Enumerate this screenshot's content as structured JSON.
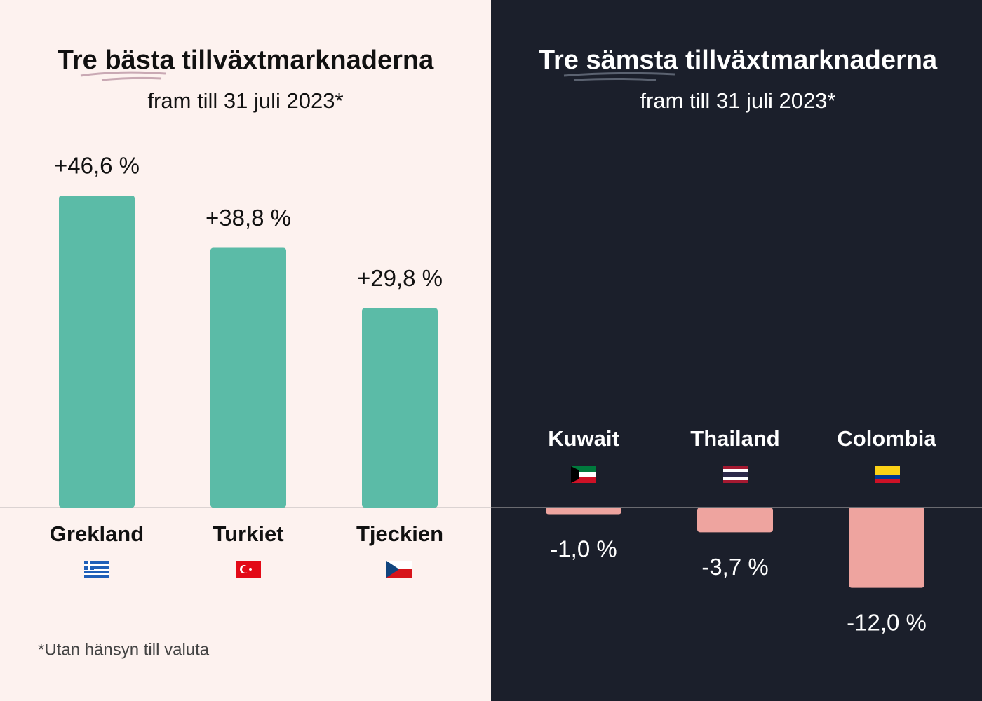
{
  "chart_data": [
    {
      "type": "bar",
      "title": "Tre bästa tillväxtmarknaderna",
      "subtitle": "fram till 31 juli 2023*",
      "categories": [
        "Grekland",
        "Turkiet",
        "Tjeckien"
      ],
      "values": [
        46.6,
        38.8,
        29.8
      ],
      "value_labels": [
        "+46,6 %",
        "+38,8 %",
        "+29,8 %"
      ],
      "color": "#5bbba7",
      "footnote": "*Utan hänsyn till valuta"
    },
    {
      "type": "bar",
      "title": "Tre sämsta tillväxtmarknaderna",
      "subtitle": "fram till 31 juli 2023*",
      "categories": [
        "Kuwait",
        "Thailand",
        "Colombia"
      ],
      "values": [
        -1.0,
        -3.7,
        -12.0
      ],
      "value_labels": [
        "-1,0 %",
        "-3,7 %",
        "-12,0 %"
      ],
      "color": "#eea49f"
    }
  ]
}
